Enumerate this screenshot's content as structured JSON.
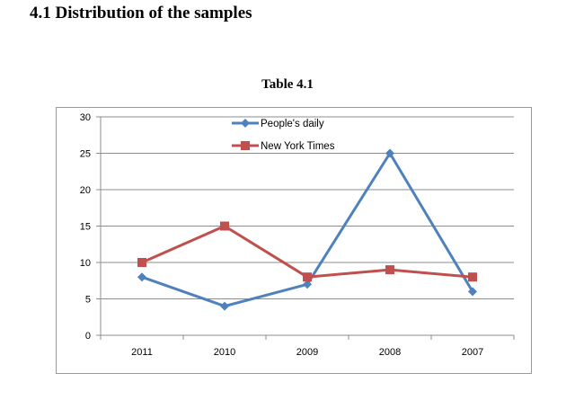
{
  "heading": "4.1 Distribution of the samples",
  "chart_data": {
    "type": "line",
    "title": "Table 4.1",
    "categories": [
      "2011",
      "2010",
      "2009",
      "2008",
      "2007"
    ],
    "series": [
      {
        "name": "People's daily",
        "values": [
          8,
          4,
          7,
          25,
          6
        ],
        "color": "#4f81bd",
        "marker": "diamond"
      },
      {
        "name": "New York Times",
        "values": [
          10,
          15,
          8,
          9,
          8
        ],
        "color": "#c0504d",
        "marker": "square"
      }
    ],
    "ylim": [
      0,
      30
    ],
    "yticks": [
      0,
      5,
      10,
      15,
      20,
      25,
      30
    ],
    "grid": true,
    "legend": "top-center"
  }
}
